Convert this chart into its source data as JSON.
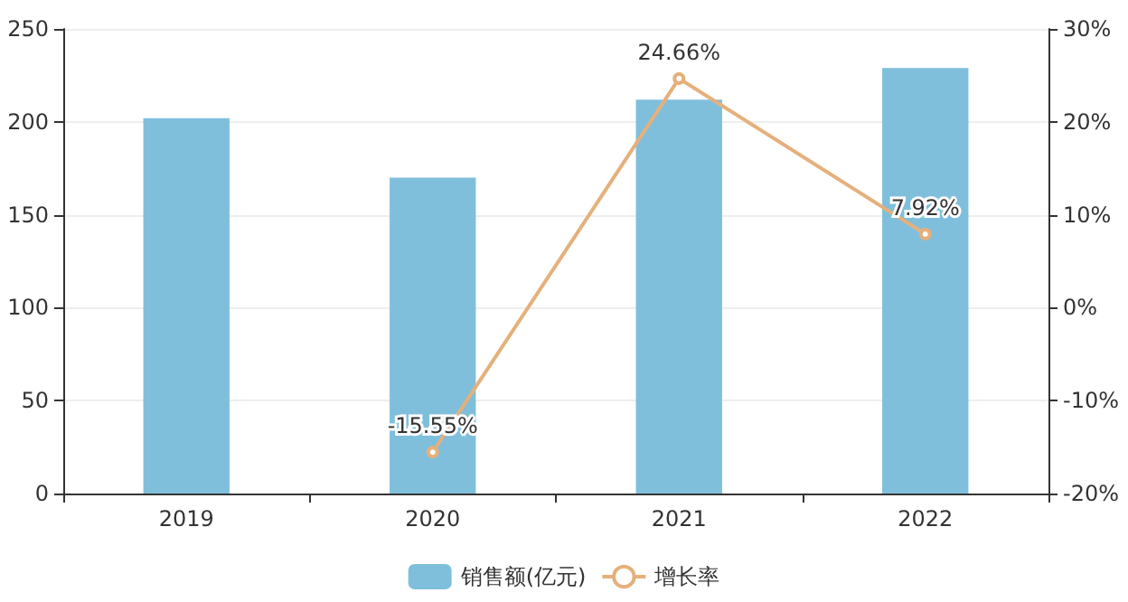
{
  "chart_data": {
    "type": "bar",
    "categories": [
      "2019",
      "2020",
      "2021",
      "2022"
    ],
    "series": [
      {
        "name": "销售额(亿元)",
        "color": "#7fbfdc",
        "values": [
          202,
          170,
          212,
          229
        ]
      },
      {
        "name": "增长率",
        "type": "line",
        "axis": "y2",
        "color": "#e5b07c",
        "values": [
          null,
          -15.55,
          24.66,
          7.92
        ],
        "value_labels": [
          null,
          "-15.55%",
          "24.66%",
          "7.92%"
        ],
        "marker": "circle"
      }
    ],
    "ylim": [
      0,
      250
    ],
    "yticks": [
      0,
      50,
      100,
      150,
      200,
      250
    ],
    "y2lim": [
      -20,
      30
    ],
    "y2ticks": [
      {
        "value": -20,
        "label": "-20%"
      },
      {
        "value": -10,
        "label": "-10%"
      },
      {
        "value": 0,
        "label": "0%"
      },
      {
        "value": 10,
        "label": "10%"
      },
      {
        "value": 20,
        "label": "20%"
      },
      {
        "value": 30,
        "label": "30%"
      }
    ],
    "grid": "y",
    "legend": "bottom"
  }
}
